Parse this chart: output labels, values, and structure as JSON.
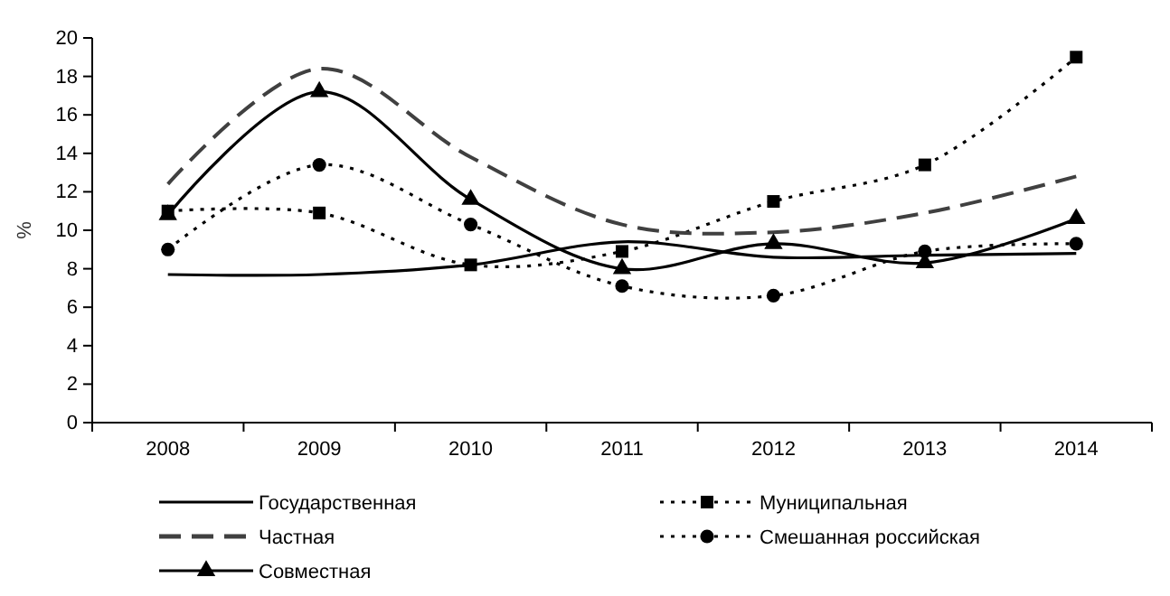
{
  "chart_data": {
    "type": "line",
    "categories": [
      "2008",
      "2009",
      "2010",
      "2011",
      "2012",
      "2013",
      "2014"
    ],
    "ylabel": "%",
    "ylim": [
      0,
      20
    ],
    "yticks": [
      0,
      2,
      4,
      6,
      8,
      10,
      12,
      14,
      16,
      18,
      20
    ],
    "grid": false,
    "legend": "bottom",
    "series": [
      {
        "name": "Государственная",
        "color": "#000000",
        "line_style": "solid",
        "marker": "none",
        "values": [
          7.7,
          7.7,
          8.2,
          9.4,
          8.6,
          8.7,
          8.8
        ]
      },
      {
        "name": "Муниципальная",
        "color": "#000000",
        "line_style": "dotted",
        "marker": "square",
        "values": [
          11.0,
          10.9,
          8.2,
          8.9,
          11.5,
          13.4,
          19.0
        ]
      },
      {
        "name": "Частная",
        "color": "#404040",
        "line_style": "dashed",
        "marker": "none",
        "values": [
          12.4,
          18.4,
          13.8,
          10.3,
          9.9,
          10.9,
          12.8
        ]
      },
      {
        "name": "Смешанная российская",
        "color": "#000000",
        "line_style": "dotted",
        "marker": "circle",
        "values": [
          9.0,
          13.4,
          10.3,
          7.1,
          6.6,
          8.9,
          9.3
        ]
      },
      {
        "name": "Совместная",
        "color": "#000000",
        "line_style": "solid",
        "marker": "triangle",
        "values": [
          10.8,
          17.2,
          11.6,
          8.0,
          9.3,
          8.3,
          10.6
        ]
      }
    ]
  }
}
